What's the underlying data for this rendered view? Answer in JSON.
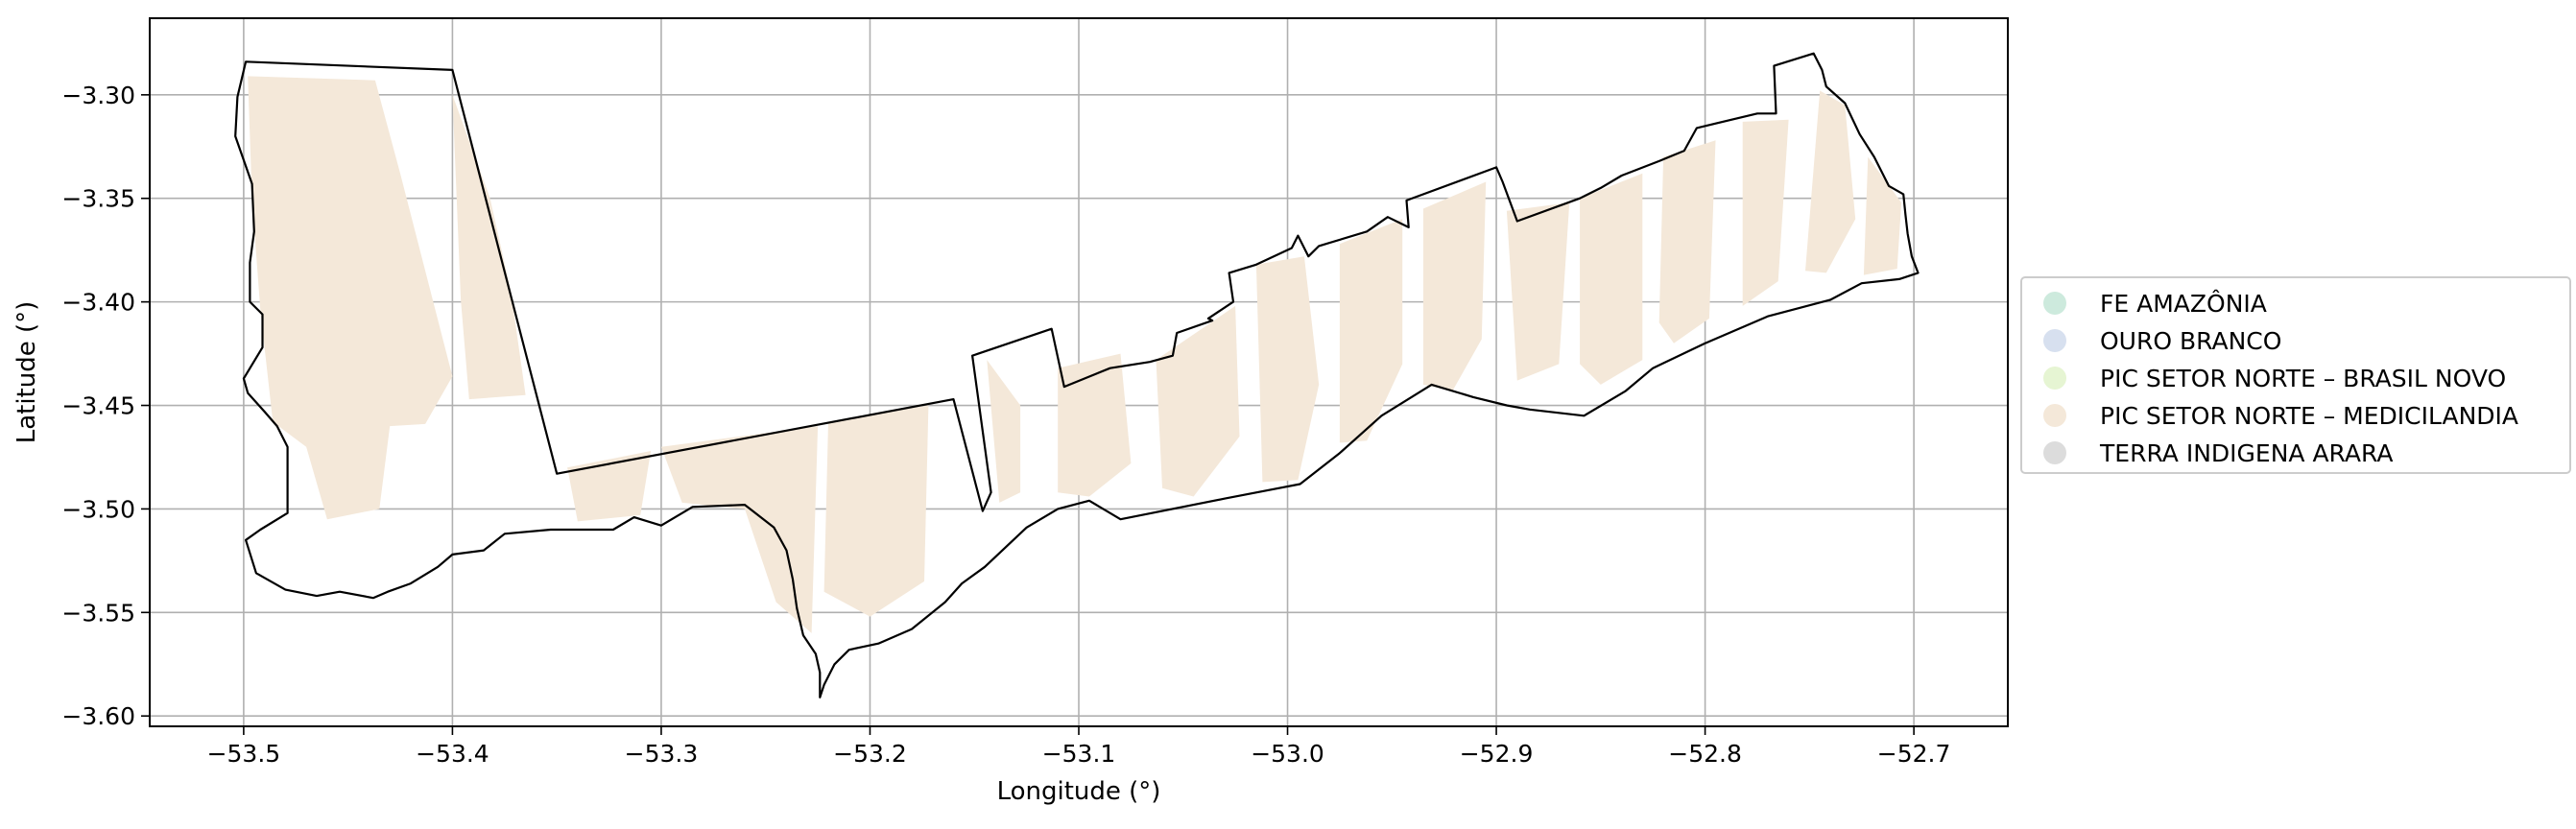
{
  "chart_data": {
    "type": "map",
    "xlabel": "Longitude (°)",
    "ylabel": "Latitude (°)",
    "xlim": [
      -53.545,
      -52.655
    ],
    "ylim": [
      -3.605,
      -3.263
    ],
    "grid": true,
    "legend_position": "right",
    "x_ticks": [
      {
        "value": -53.5,
        "label": "−53.5"
      },
      {
        "value": -53.4,
        "label": "−53.4"
      },
      {
        "value": -53.3,
        "label": "−53.3"
      },
      {
        "value": -53.2,
        "label": "−53.2"
      },
      {
        "value": -53.1,
        "label": "−53.1"
      },
      {
        "value": -53.0,
        "label": "−53.0"
      },
      {
        "value": -52.9,
        "label": "−52.9"
      },
      {
        "value": -52.8,
        "label": "−52.8"
      },
      {
        "value": -52.7,
        "label": "−52.7"
      }
    ],
    "y_ticks": [
      {
        "value": -3.3,
        "label": "−3.30"
      },
      {
        "value": -3.35,
        "label": "−3.35"
      },
      {
        "value": -3.4,
        "label": "−3.40"
      },
      {
        "value": -3.45,
        "label": "−3.45"
      },
      {
        "value": -3.5,
        "label": "−3.50"
      },
      {
        "value": -3.55,
        "label": "−3.55"
      },
      {
        "value": -3.6,
        "label": "−3.60"
      }
    ],
    "legend": [
      {
        "label": "FE AMAZÔNIA",
        "color": "#cdeadd"
      },
      {
        "label": "OURO BRANCO",
        "color": "#d7e0ef"
      },
      {
        "label": "PIC SETOR NORTE – BRASIL NOVO",
        "color": "#e6f5d3"
      },
      {
        "label": "PIC SETOR NORTE – MEDICILANDIA",
        "color": "#f4e8d9"
      },
      {
        "label": "TERRA INDIGENA ARARA",
        "color": "#dcdcdc"
      }
    ],
    "fill_color": "#f4e8d9",
    "boundary": [
      [
        -53.499,
        -3.284
      ],
      [
        -53.4,
        -3.288
      ],
      [
        -53.35,
        -3.483
      ],
      [
        -53.16,
        -3.447
      ],
      [
        -53.146,
        -3.501
      ],
      [
        -53.142,
        -3.492
      ],
      [
        -53.151,
        -3.426
      ],
      [
        -53.113,
        -3.413
      ],
      [
        -53.107,
        -3.441
      ],
      [
        -53.085,
        -3.432
      ],
      [
        -53.066,
        -3.429
      ],
      [
        -53.055,
        -3.426
      ],
      [
        -53.053,
        -3.415
      ],
      [
        -53.036,
        -3.409
      ],
      [
        -53.038,
        -3.408
      ],
      [
        -53.026,
        -3.4
      ],
      [
        -53.028,
        -3.386
      ],
      [
        -53.015,
        -3.382
      ],
      [
        -52.998,
        -3.374
      ],
      [
        -52.995,
        -3.368
      ],
      [
        -52.99,
        -3.378
      ],
      [
        -52.985,
        -3.373
      ],
      [
        -52.962,
        -3.366
      ],
      [
        -52.952,
        -3.359
      ],
      [
        -52.942,
        -3.364
      ],
      [
        -52.943,
        -3.351
      ],
      [
        -52.9,
        -3.335
      ],
      [
        -52.897,
        -3.342
      ],
      [
        -52.89,
        -3.361
      ],
      [
        -52.86,
        -3.35
      ],
      [
        -52.85,
        -3.345
      ],
      [
        -52.84,
        -3.339
      ],
      [
        -52.822,
        -3.332
      ],
      [
        -52.81,
        -3.327
      ],
      [
        -52.804,
        -3.316
      ],
      [
        -52.775,
        -3.309
      ],
      [
        -52.766,
        -3.309
      ],
      [
        -52.767,
        -3.286
      ],
      [
        -52.748,
        -3.28
      ],
      [
        -52.744,
        -3.288
      ],
      [
        -52.742,
        -3.296
      ],
      [
        -52.733,
        -3.304
      ],
      [
        -52.726,
        -3.319
      ],
      [
        -52.719,
        -3.33
      ],
      [
        -52.712,
        -3.344
      ],
      [
        -52.705,
        -3.348
      ],
      [
        -52.704,
        -3.358
      ],
      [
        -52.703,
        -3.367
      ],
      [
        -52.701,
        -3.378
      ],
      [
        -52.698,
        -3.386
      ],
      [
        -52.707,
        -3.389
      ],
      [
        -52.725,
        -3.391
      ],
      [
        -52.74,
        -3.399
      ],
      [
        -52.77,
        -3.407
      ],
      [
        -52.8,
        -3.42
      ],
      [
        -52.825,
        -3.432
      ],
      [
        -52.838,
        -3.443
      ],
      [
        -52.858,
        -3.455
      ],
      [
        -52.884,
        -3.452
      ],
      [
        -52.895,
        -3.45
      ],
      [
        -52.911,
        -3.446
      ],
      [
        -52.931,
        -3.44
      ],
      [
        -52.955,
        -3.455
      ],
      [
        -52.975,
        -3.473
      ],
      [
        -52.994,
        -3.488
      ],
      [
        -53.03,
        -3.495
      ],
      [
        -53.08,
        -3.505
      ],
      [
        -53.095,
        -3.496
      ],
      [
        -53.11,
        -3.5
      ],
      [
        -53.125,
        -3.509
      ],
      [
        -53.145,
        -3.528
      ],
      [
        -53.156,
        -3.536
      ],
      [
        -53.164,
        -3.545
      ],
      [
        -53.18,
        -3.558
      ],
      [
        -53.196,
        -3.565
      ],
      [
        -53.21,
        -3.568
      ],
      [
        -53.217,
        -3.575
      ],
      [
        -53.222,
        -3.585
      ],
      [
        -53.224,
        -3.591
      ],
      [
        -53.224,
        -3.579
      ],
      [
        -53.226,
        -3.57
      ],
      [
        -53.232,
        -3.561
      ],
      [
        -53.235,
        -3.548
      ],
      [
        -53.237,
        -3.534
      ],
      [
        -53.24,
        -3.52
      ],
      [
        -53.246,
        -3.509
      ],
      [
        -53.26,
        -3.498
      ],
      [
        -53.285,
        -3.499
      ],
      [
        -53.3,
        -3.508
      ],
      [
        -53.313,
        -3.504
      ],
      [
        -53.323,
        -3.51
      ],
      [
        -53.34,
        -3.51
      ],
      [
        -53.353,
        -3.51
      ],
      [
        -53.375,
        -3.512
      ],
      [
        -53.385,
        -3.52
      ],
      [
        -53.4,
        -3.522
      ],
      [
        -53.407,
        -3.528
      ],
      [
        -53.42,
        -3.536
      ],
      [
        -53.431,
        -3.54
      ],
      [
        -53.438,
        -3.543
      ],
      [
        -53.454,
        -3.54
      ],
      [
        -53.465,
        -3.542
      ],
      [
        -53.48,
        -3.539
      ],
      [
        -53.494,
        -3.531
      ],
      [
        -53.499,
        -3.515
      ],
      [
        -53.492,
        -3.51
      ],
      [
        -53.479,
        -3.502
      ],
      [
        -53.479,
        -3.47
      ],
      [
        -53.484,
        -3.46
      ],
      [
        -53.49,
        -3.453
      ],
      [
        -53.498,
        -3.444
      ],
      [
        -53.5,
        -3.437
      ],
      [
        -53.491,
        -3.422
      ],
      [
        -53.491,
        -3.406
      ],
      [
        -53.497,
        -3.4
      ],
      [
        -53.497,
        -3.381
      ],
      [
        -53.495,
        -3.366
      ],
      [
        -53.496,
        -3.343
      ],
      [
        -53.504,
        -3.32
      ],
      [
        -53.503,
        -3.301
      ],
      [
        -53.499,
        -3.284
      ]
    ],
    "polygons": [
      [
        [
          -53.498,
          -3.291
        ],
        [
          -53.437,
          -3.293
        ],
        [
          -53.425,
          -3.338
        ],
        [
          -53.4,
          -3.436
        ],
        [
          -53.413,
          -3.459
        ],
        [
          -53.43,
          -3.46
        ],
        [
          -53.435,
          -3.5
        ],
        [
          -53.46,
          -3.505
        ],
        [
          -53.47,
          -3.47
        ],
        [
          -53.486,
          -3.458
        ],
        [
          -53.492,
          -3.404
        ],
        [
          -53.496,
          -3.35
        ]
      ],
      [
        [
          -53.4,
          -3.3
        ],
        [
          -53.382,
          -3.35
        ],
        [
          -53.372,
          -3.395
        ],
        [
          -53.365,
          -3.445
        ],
        [
          -53.392,
          -3.447
        ],
        [
          -53.396,
          -3.399
        ]
      ],
      [
        [
          -53.345,
          -3.48
        ],
        [
          -53.305,
          -3.472
        ],
        [
          -53.31,
          -3.503
        ],
        [
          -53.34,
          -3.506
        ]
      ],
      [
        [
          -53.3,
          -3.47
        ],
        [
          -53.225,
          -3.46
        ],
        [
          -53.228,
          -3.56
        ],
        [
          -53.245,
          -3.545
        ],
        [
          -53.26,
          -3.5
        ],
        [
          -53.29,
          -3.497
        ]
      ],
      [
        [
          -53.22,
          -3.458
        ],
        [
          -53.172,
          -3.45
        ],
        [
          -53.174,
          -3.535
        ],
        [
          -53.2,
          -3.552
        ],
        [
          -53.222,
          -3.54
        ]
      ],
      [
        [
          -53.144,
          -3.428
        ],
        [
          -53.128,
          -3.45
        ],
        [
          -53.128,
          -3.492
        ],
        [
          -53.138,
          -3.497
        ]
      ],
      [
        [
          -53.11,
          -3.432
        ],
        [
          -53.08,
          -3.425
        ],
        [
          -53.075,
          -3.478
        ],
        [
          -53.095,
          -3.494
        ],
        [
          -53.11,
          -3.492
        ]
      ],
      [
        [
          -53.063,
          -3.428
        ],
        [
          -53.025,
          -3.402
        ],
        [
          -53.023,
          -3.465
        ],
        [
          -53.045,
          -3.494
        ],
        [
          -53.06,
          -3.49
        ]
      ],
      [
        [
          -53.015,
          -3.382
        ],
        [
          -52.992,
          -3.378
        ],
        [
          -52.985,
          -3.44
        ],
        [
          -52.995,
          -3.486
        ],
        [
          -53.012,
          -3.487
        ]
      ],
      [
        [
          -52.975,
          -3.372
        ],
        [
          -52.945,
          -3.36
        ],
        [
          -52.945,
          -3.43
        ],
        [
          -52.962,
          -3.467
        ],
        [
          -52.975,
          -3.468
        ]
      ],
      [
        [
          -52.935,
          -3.355
        ],
        [
          -52.905,
          -3.342
        ],
        [
          -52.907,
          -3.418
        ],
        [
          -52.921,
          -3.443
        ],
        [
          -52.935,
          -3.44
        ]
      ],
      [
        [
          -52.895,
          -3.356
        ],
        [
          -52.865,
          -3.352
        ],
        [
          -52.87,
          -3.43
        ],
        [
          -52.89,
          -3.438
        ]
      ],
      [
        [
          -52.86,
          -3.35
        ],
        [
          -52.83,
          -3.338
        ],
        [
          -52.83,
          -3.428
        ],
        [
          -52.85,
          -3.44
        ],
        [
          -52.86,
          -3.43
        ]
      ],
      [
        [
          -52.82,
          -3.33
        ],
        [
          -52.795,
          -3.322
        ],
        [
          -52.798,
          -3.408
        ],
        [
          -52.815,
          -3.42
        ],
        [
          -52.822,
          -3.41
        ]
      ],
      [
        [
          -52.782,
          -3.313
        ],
        [
          -52.76,
          -3.312
        ],
        [
          -52.765,
          -3.39
        ],
        [
          -52.782,
          -3.402
        ]
      ],
      [
        [
          -52.745,
          -3.298
        ],
        [
          -52.733,
          -3.305
        ],
        [
          -52.728,
          -3.36
        ],
        [
          -52.742,
          -3.386
        ],
        [
          -52.752,
          -3.385
        ]
      ],
      [
        [
          -52.722,
          -3.33
        ],
        [
          -52.706,
          -3.352
        ],
        [
          -52.708,
          -3.384
        ],
        [
          -52.724,
          -3.387
        ]
      ]
    ]
  }
}
